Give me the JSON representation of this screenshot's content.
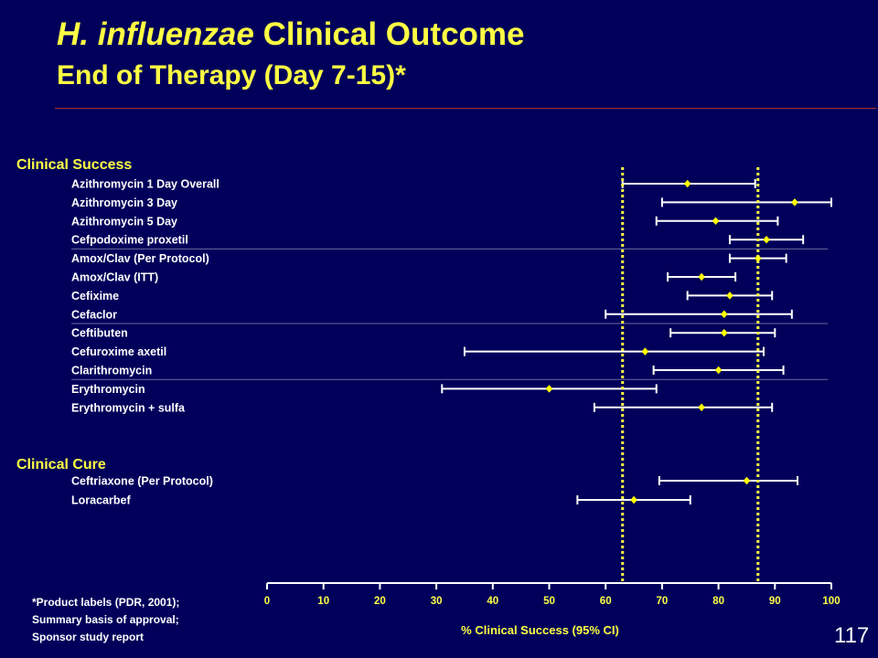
{
  "slide": {
    "title_italic": "H. influenzae",
    "title_rest": " Clinical Outcome",
    "subtitle": "End of Therapy (Day 7-15)*",
    "footnote_lines": [
      "*Product labels (PDR, 2001);",
      "Summary basis of approval;",
      "Sponsor study report"
    ],
    "page_number": "117"
  },
  "colors": {
    "background": "#00005a",
    "accent_yellow": "#ffff44",
    "text_white": "#ffffff",
    "point": "#ffff00",
    "reference_line": "#ffff44",
    "title_rule": "#b03030",
    "group_separator": "#6a6aa0"
  },
  "chart_data": {
    "type": "forest",
    "xlabel": "% Clinical Success (95% CI)",
    "xlim": [
      0,
      100
    ],
    "xticks": [
      0,
      10,
      20,
      30,
      40,
      50,
      60,
      70,
      80,
      90,
      100
    ],
    "reference_lines": [
      63,
      87
    ],
    "groups": [
      {
        "label": "Clinical Success",
        "rows": [
          {
            "label": "Azithromycin 1 Day Overall",
            "point": 74.5,
            "lower": 63,
            "upper": 86.5
          },
          {
            "label": "Azithromycin 3 Day",
            "point": 93.5,
            "lower": 70,
            "upper": 100
          },
          {
            "label": "Azithromycin 5 Day",
            "point": 79.5,
            "lower": 69,
            "upper": 90.5
          },
          {
            "label": "Cefpodoxime proxetil",
            "point": 88.5,
            "lower": 82,
            "upper": 95
          },
          {
            "label": "Amox/Clav (Per Protocol)",
            "point": 87,
            "lower": 82,
            "upper": 92
          },
          {
            "label": "Amox/Clav (ITT)",
            "point": 77,
            "lower": 71,
            "upper": 83
          },
          {
            "label": "Cefixime",
            "point": 82,
            "lower": 74.5,
            "upper": 89.5
          },
          {
            "label": "Cefaclor",
            "point": 81,
            "lower": 60,
            "upper": 93
          },
          {
            "label": "Ceftibuten",
            "point": 81,
            "lower": 71.5,
            "upper": 90
          },
          {
            "label": "Cefuroxime axetil",
            "point": 67,
            "lower": 35,
            "upper": 88
          },
          {
            "label": "Clarithromycin",
            "point": 80,
            "lower": 68.5,
            "upper": 91.5
          },
          {
            "label": "Erythromycin",
            "point": 50,
            "lower": 31,
            "upper": 69
          },
          {
            "label": "Erythromycin + sulfa",
            "point": 77,
            "lower": 58,
            "upper": 89.5
          }
        ]
      },
      {
        "label": "Clinical Cure",
        "rows": [
          {
            "label": "Ceftriaxone (Per Protocol)",
            "point": 85,
            "lower": 69.5,
            "upper": 94
          },
          {
            "label": "Loracarbef",
            "point": 65,
            "lower": 55,
            "upper": 75
          }
        ]
      }
    ]
  }
}
